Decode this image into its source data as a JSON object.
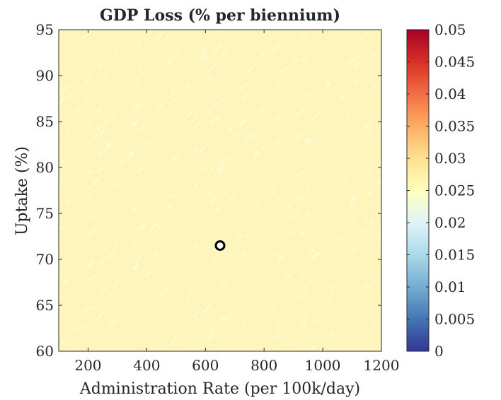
{
  "chart_data": {
    "type": "heatmap",
    "title": "GDP Loss (% per biennium)",
    "xlabel": "Administration Rate (per 100k/day)",
    "ylabel": "Uptake (%)",
    "xlim": [
      100,
      1200
    ],
    "ylim": [
      60,
      95
    ],
    "xticks": [
      200,
      400,
      600,
      800,
      1000,
      1200
    ],
    "yticks": [
      60,
      65,
      70,
      75,
      80,
      85,
      90,
      95
    ],
    "grid": false,
    "field_value_range": [
      0.025,
      0.026
    ],
    "colorbar": {
      "min": 0,
      "max": 0.05,
      "ticks": [
        "0",
        "0.005",
        "0.01",
        "0.015",
        "0.02",
        "0.025",
        "0.03",
        "0.035",
        "0.04",
        "0.045",
        "0.05"
      ],
      "colormap": "RdYlBu_r",
      "colors": [
        "#313695",
        "#4575b4",
        "#74add1",
        "#abd9e9",
        "#e0f3f8",
        "#ffffbf",
        "#fee090",
        "#fdae61",
        "#f46d43",
        "#d73027",
        "#a50026"
      ]
    },
    "field_color": "#fdf5bc",
    "speckle_color": "#fffcd6",
    "marker": {
      "x": 650,
      "y": 71.5,
      "shape": "circle"
    }
  }
}
